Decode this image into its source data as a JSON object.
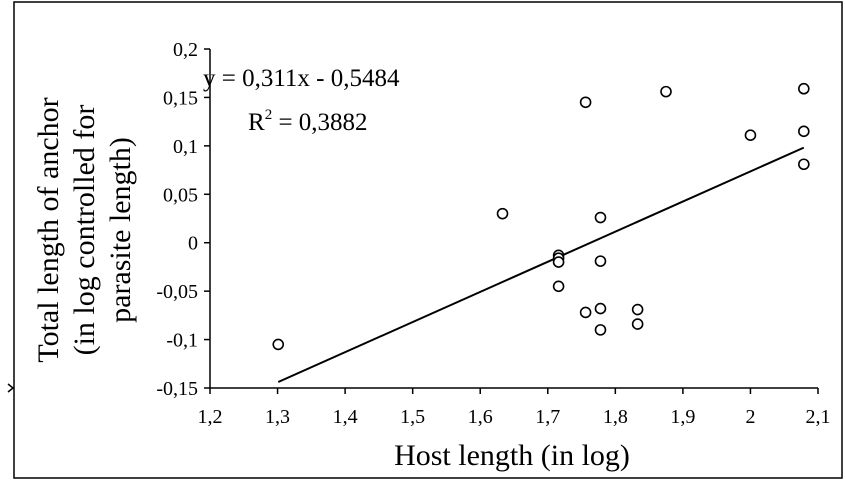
{
  "chart_data": {
    "type": "scatter",
    "xlabel": "Host length (in log)",
    "ylabel_lines": [
      "Total length of anchor",
      "(in log controlled for",
      "parasite length)"
    ],
    "xlim": [
      1.2,
      2.1
    ],
    "ylim": [
      -0.15,
      0.2
    ],
    "x_ticks": [
      1.2,
      1.3,
      1.4,
      1.5,
      1.6,
      1.7,
      1.8,
      1.9,
      2.0,
      2.1
    ],
    "x_tick_labels": [
      "1,2",
      "1,3",
      "1,4",
      "1,5",
      "1,6",
      "1,7",
      "1,8",
      "1,9",
      "2",
      "2,1"
    ],
    "y_ticks": [
      -0.15,
      -0.1,
      -0.05,
      0,
      0.05,
      0.1,
      0.15,
      0.2
    ],
    "y_tick_labels": [
      "-0,15",
      "-0,1",
      "-0,05",
      "0",
      "0,05",
      "0,1",
      "0,15",
      "0,2"
    ],
    "grid": false,
    "legend": "none",
    "trendline": {
      "slope": 0.311,
      "intercept": -0.5484,
      "x_range": [
        1.301,
        2.079
      ],
      "equation_label": "y = 0,311x - 0,5484",
      "r2_prefix": "R",
      "r2_sup": "2",
      "r2_suffix": " = 0,3882"
    },
    "points": [
      {
        "x": 1.301,
        "y": -0.105
      },
      {
        "x": 1.633,
        "y": 0.03
      },
      {
        "x": 1.716,
        "y": -0.013
      },
      {
        "x": 1.716,
        "y": -0.016
      },
      {
        "x": 1.716,
        "y": -0.02
      },
      {
        "x": 1.716,
        "y": -0.045
      },
      {
        "x": 1.756,
        "y": 0.145
      },
      {
        "x": 1.756,
        "y": -0.072
      },
      {
        "x": 1.778,
        "y": 0.026
      },
      {
        "x": 1.778,
        "y": -0.019
      },
      {
        "x": 1.778,
        "y": -0.068
      },
      {
        "x": 1.778,
        "y": -0.09
      },
      {
        "x": 1.833,
        "y": -0.069
      },
      {
        "x": 1.833,
        "y": -0.084
      },
      {
        "x": 1.875,
        "y": 0.156
      },
      {
        "x": 2.0,
        "y": 0.111
      },
      {
        "x": 2.079,
        "y": 0.159
      },
      {
        "x": 2.079,
        "y": 0.115
      },
      {
        "x": 2.079,
        "y": 0.081
      }
    ],
    "colors": {
      "marker": "#000000",
      "line": "#000000",
      "background": "#ffffff"
    }
  }
}
